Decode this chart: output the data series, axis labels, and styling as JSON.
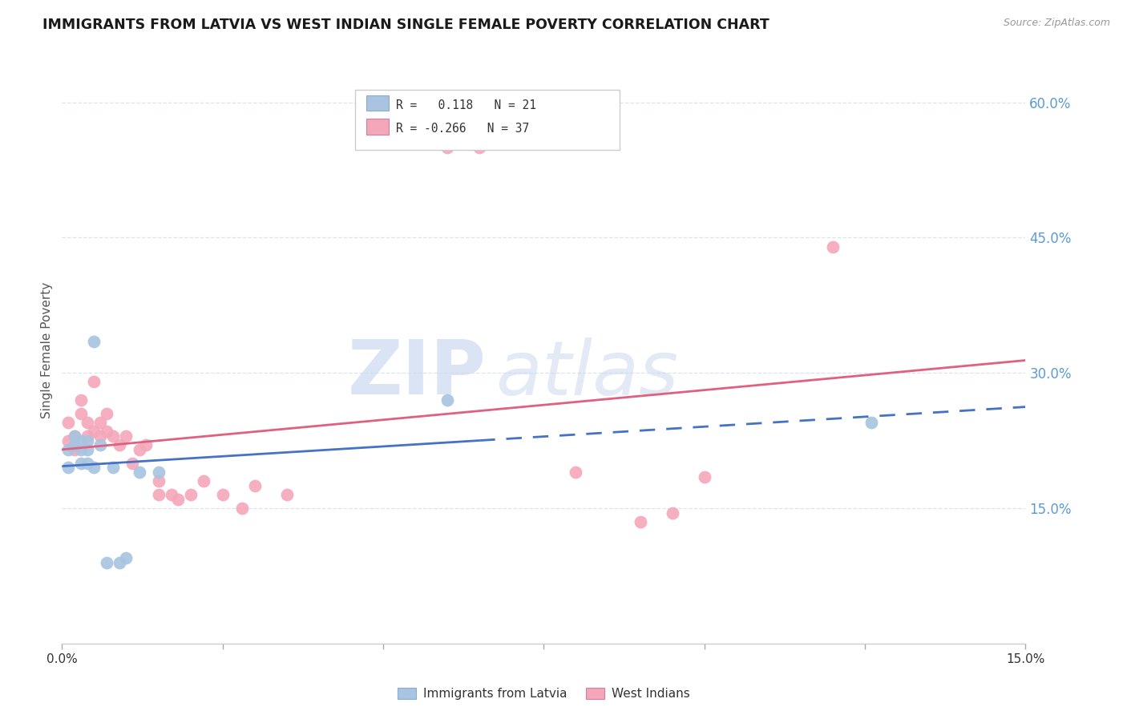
{
  "title": "IMMIGRANTS FROM LATVIA VS WEST INDIAN SINGLE FEMALE POVERTY CORRELATION CHART",
  "source": "Source: ZipAtlas.com",
  "ylabel": "Single Female Poverty",
  "ytick_labels": [
    "60.0%",
    "45.0%",
    "30.0%",
    "15.0%"
  ],
  "ytick_values": [
    0.6,
    0.45,
    0.3,
    0.15
  ],
  "xlim": [
    0.0,
    0.15
  ],
  "ylim": [
    0.0,
    0.65
  ],
  "r_latvia": 0.118,
  "n_latvia": 21,
  "r_westindian": -0.266,
  "n_westindian": 37,
  "latvia_x": [
    0.001,
    0.001,
    0.002,
    0.002,
    0.003,
    0.003,
    0.003,
    0.004,
    0.004,
    0.004,
    0.005,
    0.005,
    0.006,
    0.007,
    0.008,
    0.009,
    0.01,
    0.012,
    0.015,
    0.06,
    0.126
  ],
  "latvia_y": [
    0.215,
    0.195,
    0.23,
    0.22,
    0.225,
    0.215,
    0.2,
    0.225,
    0.215,
    0.2,
    0.335,
    0.195,
    0.22,
    0.09,
    0.195,
    0.09,
    0.095,
    0.19,
    0.19,
    0.27,
    0.245
  ],
  "westindian_x": [
    0.001,
    0.001,
    0.002,
    0.002,
    0.003,
    0.003,
    0.004,
    0.004,
    0.005,
    0.005,
    0.006,
    0.006,
    0.007,
    0.007,
    0.008,
    0.009,
    0.01,
    0.011,
    0.012,
    0.013,
    0.015,
    0.015,
    0.017,
    0.018,
    0.02,
    0.022,
    0.025,
    0.028,
    0.03,
    0.035,
    0.06,
    0.065,
    0.08,
    0.09,
    0.095,
    0.1,
    0.12
  ],
  "westindian_y": [
    0.245,
    0.225,
    0.23,
    0.215,
    0.27,
    0.255,
    0.245,
    0.23,
    0.29,
    0.235,
    0.245,
    0.23,
    0.255,
    0.235,
    0.23,
    0.22,
    0.23,
    0.2,
    0.215,
    0.22,
    0.18,
    0.165,
    0.165,
    0.16,
    0.165,
    0.18,
    0.165,
    0.15,
    0.175,
    0.165,
    0.55,
    0.55,
    0.19,
    0.135,
    0.145,
    0.185,
    0.44
  ],
  "color_latvia": "#a8c4e0",
  "color_westindian": "#f4a7b9",
  "color_latvia_line": "#4472c4",
  "color_westindian_line": "#e06080",
  "color_right_axis": "#5b9bd5",
  "background_color": "#ffffff",
  "watermark_color": "#ccd9f0",
  "grid_color": "#dde4f0"
}
